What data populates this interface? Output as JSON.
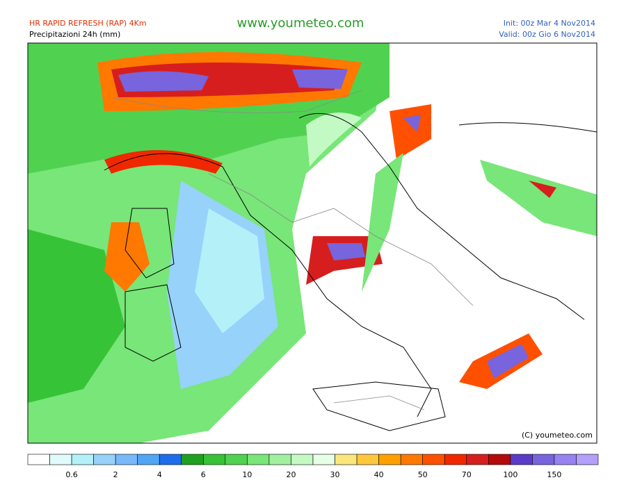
{
  "header": {
    "model": "HR RAPID REFRESH (RAP) 4Km",
    "product": "Precipitazioni 24h (mm)",
    "site": "www.youmeteo.com",
    "init": "Init: 00z Mar  4  Nov2014",
    "valid": "Valid: 00z Gio  6  Nov2014"
  },
  "map": {
    "copyright": "(C) youmeteo.com"
  },
  "legend": {
    "colors": [
      "#ffffff",
      "#e0fbfb",
      "#b4f0f8",
      "#96d2fa",
      "#78b9fa",
      "#50a5f5",
      "#1e6eeb",
      "#1fa01f",
      "#37c337",
      "#50d250",
      "#78e678",
      "#a0f0a0",
      "#c3fac3",
      "#e6ffe6",
      "#fae67d",
      "#ffc83c",
      "#ffa000",
      "#ff7800",
      "#ff5000",
      "#f02800",
      "#d71e1e",
      "#b40a0a",
      "#5a3cc8",
      "#7864dc",
      "#9682f0",
      "#b4a0fa"
    ],
    "labels": [
      "0.6",
      "2",
      "4",
      "6",
      "10",
      "20",
      "30",
      "40",
      "50",
      "70",
      "100",
      "150"
    ]
  }
}
